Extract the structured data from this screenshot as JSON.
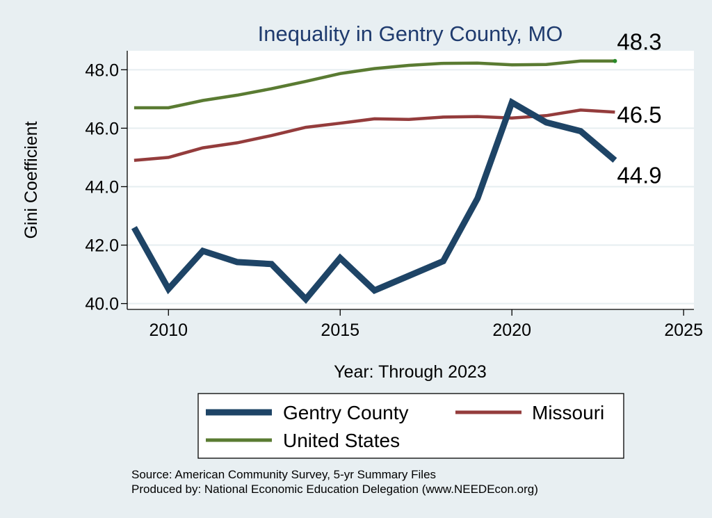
{
  "chart_data": {
    "type": "line",
    "title": "Inequality in Gentry County, MO",
    "xlabel": "Year: Through 2023",
    "ylabel": "Gini Coefficient",
    "xlim": [
      2008.8,
      2025.3
    ],
    "ylim": [
      39.8,
      48.65
    ],
    "xticks": [
      2010,
      2015,
      2020,
      2025
    ],
    "xtick_labels": [
      "2010",
      "2015",
      "2020",
      "2025"
    ],
    "yticks": [
      40,
      42,
      44,
      46,
      48
    ],
    "ytick_labels": [
      "40.0",
      "42.0",
      "44.0",
      "46.0",
      "48.0"
    ],
    "grid": true,
    "x": [
      2009,
      2010,
      2011,
      2012,
      2013,
      2014,
      2015,
      2016,
      2017,
      2018,
      2019,
      2020,
      2021,
      2022,
      2023
    ],
    "series": [
      {
        "name": "United States",
        "color": "#5a7b32",
        "values": [
          46.7,
          46.7,
          46.95,
          47.13,
          47.35,
          47.6,
          47.87,
          48.04,
          48.15,
          48.22,
          48.23,
          48.17,
          48.18,
          48.3,
          48.3
        ],
        "end_label": "48.3"
      },
      {
        "name": "Missouri",
        "color": "#943c3c",
        "values": [
          44.9,
          45.0,
          45.33,
          45.5,
          45.75,
          46.03,
          46.17,
          46.32,
          46.3,
          46.38,
          46.4,
          46.35,
          46.43,
          46.62,
          46.55
        ],
        "end_label": "46.5"
      },
      {
        "name": "Gentry County",
        "color": "#1e4466",
        "values": [
          42.6,
          40.5,
          41.8,
          41.42,
          41.35,
          40.15,
          41.56,
          40.45,
          40.95,
          41.45,
          43.6,
          46.88,
          46.2,
          45.9,
          44.9
        ],
        "end_label": "44.9"
      }
    ],
    "legend": {
      "placement": "bottom",
      "entries": [
        {
          "label": "Gentry County",
          "color": "#1e4466"
        },
        {
          "label": "Missouri",
          "color": "#943c3c"
        },
        {
          "label": "United States",
          "color": "#5a7b32"
        }
      ]
    }
  },
  "footer": {
    "source_line": "Source: American Community Survey, 5-yr Summary Files",
    "produced_line": "Produced by: National Economic Education Delegation (www.NEEDEcon.org)"
  }
}
